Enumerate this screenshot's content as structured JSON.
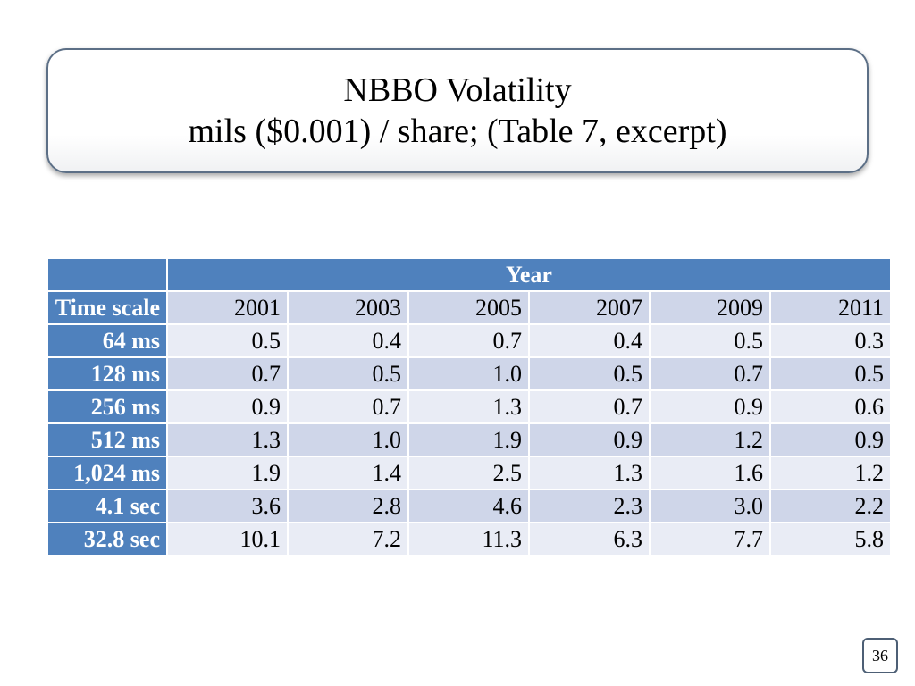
{
  "slide": {
    "title_line1": "NBBO Volatility",
    "title_line2": "mils ($0.001) / share; (Table 7, excerpt)",
    "page_number": "36"
  },
  "table": {
    "group_header": "Year",
    "row_header_label": "Time scale",
    "years": [
      "2001",
      "2003",
      "2005",
      "2007",
      "2009",
      "2011"
    ],
    "rows": [
      {
        "label": "64 ms",
        "values": [
          "0.5",
          "0.4",
          "0.7",
          "0.4",
          "0.5",
          "0.3"
        ]
      },
      {
        "label": "128 ms",
        "values": [
          "0.7",
          "0.5",
          "1.0",
          "0.5",
          "0.7",
          "0.5"
        ]
      },
      {
        "label": "256 ms",
        "values": [
          "0.9",
          "0.7",
          "1.3",
          "0.7",
          "0.9",
          "0.6"
        ]
      },
      {
        "label": "512 ms",
        "values": [
          "1.3",
          "1.0",
          "1.9",
          "0.9",
          "1.2",
          "0.9"
        ]
      },
      {
        "label": "1,024 ms",
        "values": [
          "1.9",
          "1.4",
          "2.5",
          "1.3",
          "1.6",
          "1.2"
        ]
      },
      {
        "label": "4.1 sec",
        "values": [
          "3.6",
          "2.8",
          "4.6",
          "2.3",
          "3.0",
          "2.2"
        ]
      },
      {
        "label": "32.8 sec",
        "values": [
          "10.1",
          "7.2",
          "11.3",
          "6.3",
          "7.7",
          "5.8"
        ]
      }
    ]
  },
  "colors": {
    "header_blue": "#4f81bd",
    "row_dark": "#cfd6e9",
    "row_light": "#e9ecf5"
  }
}
